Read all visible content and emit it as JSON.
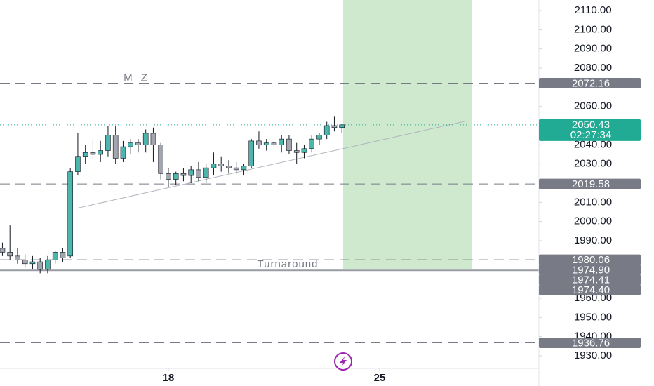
{
  "chart_data": {
    "type": "candlestick",
    "x": [
      12.5,
      12.75,
      13,
      13.25,
      13.5,
      13.75,
      14,
      14.25,
      14.5,
      14.75,
      15,
      15.25,
      15.5,
      15.75,
      16,
      16.25,
      16.5,
      16.75,
      17,
      17.25,
      17.5,
      17.75,
      18,
      18.25,
      18.5,
      18.75,
      19,
      19.25,
      19.5,
      19.75,
      20,
      20.25,
      20.5,
      20.75,
      21,
      21.25,
      21.5,
      21.75,
      22,
      22.25,
      22.5,
      22.75,
      23,
      23.25,
      23.5,
      23.75
    ],
    "open": [
      1986,
      1984,
      1982,
      1980,
      1978,
      1979,
      1975,
      1980,
      1984,
      1982,
      2026,
      2034,
      2036,
      2035,
      2037,
      2045,
      2033,
      2039,
      2041,
      2040,
      2046,
      2040,
      2025,
      2022,
      2025,
      2024,
      2027,
      2023,
      2028,
      2030,
      2029,
      2028,
      2027,
      2029,
      2042,
      2040,
      2041,
      2040,
      2043,
      2037,
      2036,
      2038,
      2043,
      2045,
      2050,
      2049
    ],
    "high": [
      1989,
      1998,
      1986,
      1983,
      1982,
      1981,
      1982,
      1985,
      1986,
      2028,
      2046,
      2040,
      2043,
      2042,
      2050,
      2050,
      2042,
      2043,
      2043,
      2048,
      2049,
      2041,
      2028,
      2026,
      2028,
      2029,
      2031,
      2030,
      2036,
      2034,
      2032,
      2031,
      2030,
      2043,
      2047,
      2043,
      2043,
      2045,
      2045,
      2041,
      2040,
      2045,
      2046,
      2052,
      2055,
      2051
    ],
    "low": [
      1982,
      1980,
      1978,
      1976,
      1975,
      1973,
      1973,
      1978,
      1979,
      1981,
      2024,
      2030,
      2032,
      2031,
      2034,
      2030,
      2031,
      2035,
      2036,
      2036,
      2031,
      2022,
      2018,
      2019,
      2021,
      2020,
      2021,
      2020,
      2024,
      2026,
      2025,
      2025,
      2024,
      2028,
      2038,
      2037,
      2038,
      2036,
      2035,
      2030,
      2033,
      2036,
      2040,
      2043,
      2047,
      2046
    ],
    "close": [
      1984,
      1982,
      1980,
      1978,
      1979,
      1975,
      1980,
      1984,
      1981,
      2026,
      2034,
      2036,
      2035,
      2037,
      2045,
      2033,
      2039,
      2041,
      2040,
      2046,
      2040,
      2025,
      2022,
      2025,
      2024,
      2027,
      2023,
      2028,
      2030,
      2029,
      2028,
      2027,
      2029,
      2042,
      2040,
      2041,
      2040,
      2043,
      2037,
      2036,
      2038,
      2043,
      2045,
      2050,
      2049,
      2050.43
    ],
    "up_color": "#4db6ac",
    "down_color": "#a3a6ae",
    "xlim": [
      12.42,
      30.28
    ],
    "xticks": [
      18,
      25
    ],
    "ylim": [
      1923.4,
      2115.5
    ],
    "yticks": [
      {
        "value": 2110,
        "label": "2110.00"
      },
      {
        "value": 2100,
        "label": "2100.00"
      },
      {
        "value": 2090,
        "label": "2090.00"
      },
      {
        "value": 2080,
        "label": "2080.00"
      },
      {
        "value": 2060,
        "label": "2060.00"
      },
      {
        "value": 2040,
        "label": "2040.00"
      },
      {
        "value": 2030,
        "label": "2030.00"
      },
      {
        "value": 2010,
        "label": "2010.00"
      },
      {
        "value": 2000,
        "label": "2000.00"
      },
      {
        "value": 1990,
        "label": "1990.00"
      },
      {
        "value": 1960,
        "label": "1960.00"
      },
      {
        "value": 1950,
        "label": "1950.00"
      },
      {
        "value": 1940,
        "label": "1940.00"
      },
      {
        "value": 1930,
        "label": "1930.00"
      }
    ],
    "levels": [
      {
        "value": 2072.16,
        "label": "2072.16",
        "style": "dashed",
        "text": "M Z"
      },
      {
        "value": 2019.58,
        "label": "2019.58",
        "style": "dashed"
      },
      {
        "value": 1980.06,
        "label": "1980.06",
        "style": "dashed"
      },
      {
        "value": 1974.9,
        "label": "1974.90",
        "style": "solid",
        "text": "Turnaround"
      },
      {
        "value": 1974.41,
        "label": "1974.41",
        "style": "solid"
      },
      {
        "value": 1974.4,
        "label": "1974.40",
        "style": "solid"
      },
      {
        "value": 1936.76,
        "label": "1936.76",
        "style": "dashed"
      }
    ],
    "last_price": {
      "value": 2050.43,
      "label": "2050.43",
      "countdown": "02:27:34",
      "color": "#22ab94"
    },
    "trend_line": {
      "x": [
        14.93,
        27.81
      ],
      "y": [
        2006.8,
        2052.2
      ]
    },
    "zone": {
      "x": [
        23.79,
        28.07
      ],
      "y": [
        1974.9,
        2115.5
      ],
      "color": "#cfe9cf"
    }
  }
}
